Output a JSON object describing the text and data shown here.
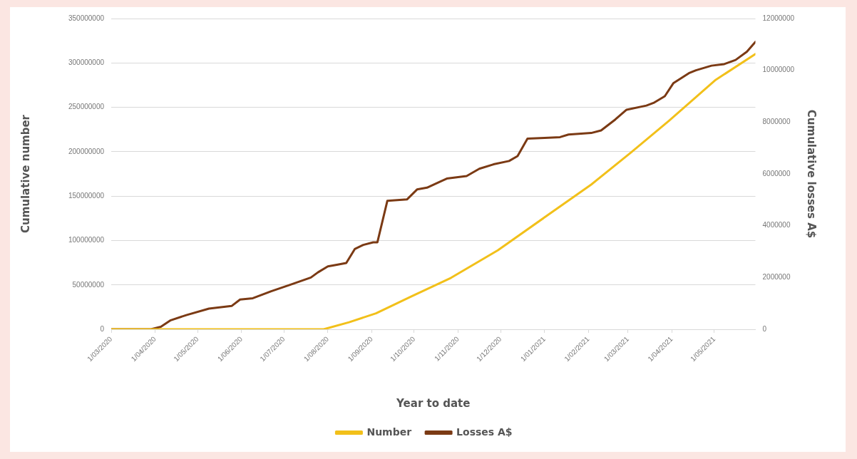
{
  "chart_data": {
    "type": "line",
    "xlabel": "Year to date",
    "ylabel": "Cumulative number",
    "y2label": "Cumulative losses A$",
    "xlim": [
      "2020-03-01",
      "2021-05-30"
    ],
    "xticks": [
      {
        "value": "2020-03-01",
        "label": "1/03/2020"
      },
      {
        "value": "2020-04-01",
        "label": "1/04/2020"
      },
      {
        "value": "2020-05-01",
        "label": "1/05/2020"
      },
      {
        "value": "2020-06-01",
        "label": "1/06/2020"
      },
      {
        "value": "2020-07-01",
        "label": "1/07/2020"
      },
      {
        "value": "2020-08-01",
        "label": "1/08/2020"
      },
      {
        "value": "2020-09-01",
        "label": "1/09/2020"
      },
      {
        "value": "2020-10-01",
        "label": "1/10/2020"
      },
      {
        "value": "2020-11-01",
        "label": "1/11/2020"
      },
      {
        "value": "2020-12-01",
        "label": "1/12/2020"
      },
      {
        "value": "2021-01-01",
        "label": "1/01/2021"
      },
      {
        "value": "2021-02-01",
        "label": "1/02/2021"
      },
      {
        "value": "2021-03-01",
        "label": "1/03/2021"
      },
      {
        "value": "2021-04-01",
        "label": "1/04/2021"
      },
      {
        "value": "2021-05-01",
        "label": "1/05/2021"
      }
    ],
    "ylim": [
      0,
      350000000
    ],
    "yticks": [
      0,
      50000000,
      100000000,
      150000000,
      200000000,
      250000000,
      300000000,
      350000000
    ],
    "y2lim": [
      0,
      12000000
    ],
    "y2ticks": [
      0,
      2000000,
      4000000,
      6000000,
      8000000,
      10000000,
      12000000
    ],
    "grid": "y",
    "legend": "bottom",
    "marker": "none",
    "line_style": "solid",
    "series": [
      {
        "name": "Number",
        "color": "#f2c01a",
        "x": [
          "2020-03-01",
          "2020-07-29",
          "2020-08-16",
          "2020-09-04",
          "2020-09-29",
          "2020-10-27",
          "2020-11-29",
          "2021-01-01",
          "2021-02-03",
          "2021-03-03",
          "2021-03-30",
          "2021-05-02",
          "2021-05-30"
        ],
        "values": [
          0,
          0,
          8000000,
          18000000,
          37000000,
          58000000,
          89000000,
          126000000,
          163000000,
          199000000,
          235000000,
          281000000,
          310000000
        ]
      },
      {
        "name": "Losses A$",
        "color": "#7b3a14",
        "axis": "y2",
        "x": [
          "2020-03-01",
          "2020-03-29",
          "2020-04-05",
          "2020-04-12",
          "2020-04-23",
          "2020-05-09",
          "2020-05-25",
          "2020-05-31",
          "2020-06-09",
          "2020-06-22",
          "2020-07-06",
          "2020-07-20",
          "2020-07-25",
          "2020-08-01",
          "2020-08-08",
          "2020-08-14",
          "2020-08-20",
          "2020-08-26",
          "2020-09-02",
          "2020-09-05",
          "2020-09-12",
          "2020-09-26",
          "2020-10-03",
          "2020-10-10",
          "2020-10-24",
          "2020-11-07",
          "2020-11-16",
          "2020-11-26",
          "2020-12-07",
          "2020-12-13",
          "2020-12-20",
          "2021-01-01",
          "2021-01-12",
          "2021-01-18",
          "2021-02-03",
          "2021-02-10",
          "2021-02-20",
          "2021-02-28",
          "2021-03-14",
          "2021-03-19",
          "2021-03-27",
          "2021-04-02",
          "2021-04-13",
          "2021-04-18",
          "2021-04-29",
          "2021-05-08",
          "2021-05-16",
          "2021-05-24",
          "2021-05-30"
        ],
        "values": [
          0,
          0,
          100000,
          350000,
          550000,
          800000,
          900000,
          1150000,
          1200000,
          1470000,
          1730000,
          2000000,
          2200000,
          2430000,
          2500000,
          2560000,
          3100000,
          3260000,
          3360000,
          3360000,
          4960000,
          5020000,
          5400000,
          5470000,
          5820000,
          5920000,
          6200000,
          6370000,
          6500000,
          6690000,
          7360000,
          7390000,
          7420000,
          7520000,
          7580000,
          7680000,
          8100000,
          8480000,
          8640000,
          8740000,
          9000000,
          9500000,
          9890000,
          10000000,
          10180000,
          10240000,
          10400000,
          10720000,
          11100000
        ]
      }
    ]
  }
}
